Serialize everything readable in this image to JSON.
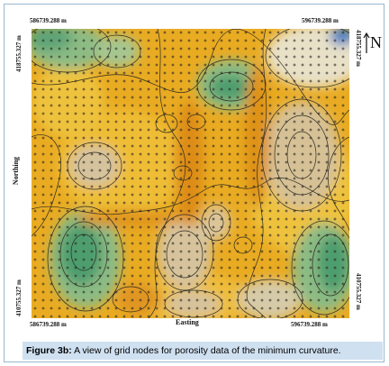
{
  "map": {
    "coords": {
      "top_left": "586739.288 m",
      "top_right": "596739.288 m",
      "bottom_left": "586739.288 m",
      "bottom_right": "596739.288 m",
      "left_top": "418755.327 m",
      "left_bottom": "410755.327 m",
      "right_top": "418755.327 m",
      "right_bottom": "410755.327 m"
    },
    "axis_x_label": "Easting",
    "axis_y_label": "Northing",
    "north_label": "N",
    "colors": {
      "high": "#4e9d6e",
      "mid_high": "#8cbb84",
      "mid": "#e6a51c",
      "mid_low": "#f0c03a",
      "low": "#d9c39a",
      "lowest": "#3a7dc8"
    }
  },
  "caption": {
    "label": "Figure 3b:",
    "text": " A view of grid nodes for porosity data of the minimum curvature."
  }
}
